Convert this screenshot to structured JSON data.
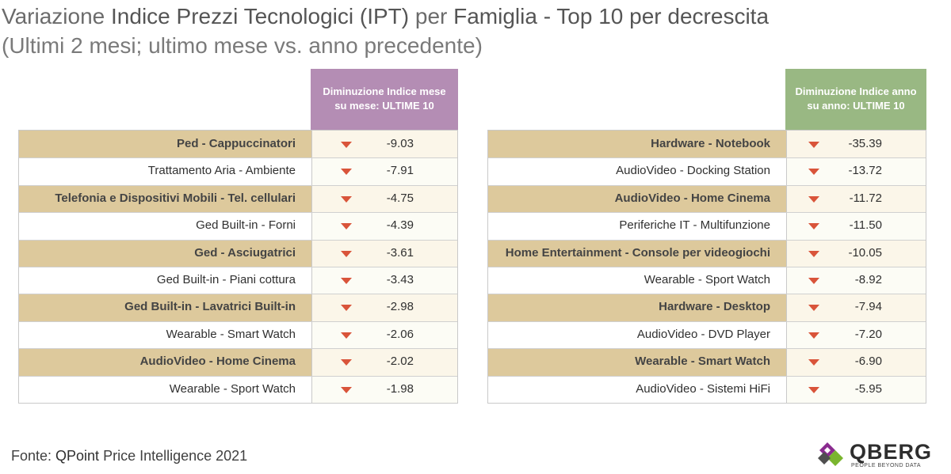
{
  "title": {
    "prefix": "Variazione ",
    "part1": "Indice Prezzi Tecnologici (IPT)",
    "mid": " per ",
    "part2": "Famiglia - Top 10 per decrescita"
  },
  "subtitle": "(Ultimi 2 mesi; ultimo mese vs. anno precedente)",
  "colors": {
    "header_left": "#b48db4",
    "header_right": "#99b883",
    "arrow": "#d9543a",
    "band": "#ddc99c"
  },
  "chart_data": [
    {
      "type": "table",
      "header": "Diminuzione Indice mese su mese: ULTIME 10",
      "rows": [
        {
          "label": "Ped - Cappuccinatori",
          "value": "-9.03"
        },
        {
          "label": "Trattamento Aria - Ambiente",
          "value": "-7.91"
        },
        {
          "label": "Telefonia e Dispositivi Mobili - Tel. cellulari",
          "value": "-4.75"
        },
        {
          "label": "Ged Built-in - Forni",
          "value": "-4.39"
        },
        {
          "label": "Ged - Asciugatrici",
          "value": "-3.61"
        },
        {
          "label": "Ged Built-in - Piani cottura",
          "value": "-3.43"
        },
        {
          "label": "Ged Built-in - Lavatrici Built-in",
          "value": "-2.98"
        },
        {
          "label": "Wearable - Smart Watch",
          "value": "-2.06"
        },
        {
          "label": "AudioVideo - Home Cinema",
          "value": "-2.02"
        },
        {
          "label": "Wearable - Sport Watch",
          "value": "-1.98"
        }
      ]
    },
    {
      "type": "table",
      "header": "Diminuzione Indice anno su anno: ULTIME 10",
      "rows": [
        {
          "label": "Hardware - Notebook",
          "value": "-35.39"
        },
        {
          "label": "AudioVideo - Docking Station",
          "value": "-13.72"
        },
        {
          "label": "AudioVideo - Home Cinema",
          "value": "-11.72"
        },
        {
          "label": "Periferiche IT - Multifunzione",
          "value": "-11.50"
        },
        {
          "label": "Home Entertainment - Console per videogiochi",
          "value": "-10.05"
        },
        {
          "label": "Wearable - Sport Watch",
          "value": "-8.92"
        },
        {
          "label": "Hardware - Desktop",
          "value": "-7.94"
        },
        {
          "label": "AudioVideo - DVD Player",
          "value": "-7.20"
        },
        {
          "label": "Wearable - Smart Watch",
          "value": "-6.90"
        },
        {
          "label": "AudioVideo - Sistemi HiFi",
          "value": "-5.95"
        }
      ]
    }
  ],
  "source": {
    "prefix": "Fonte: ",
    "brand": "QPoint",
    "rest": " Price Intelligence 2021"
  },
  "logo": {
    "word": "QBERG",
    "tagline": "PEOPLE BEYOND DATA",
    "icon": "qberg-diamond-logo"
  }
}
